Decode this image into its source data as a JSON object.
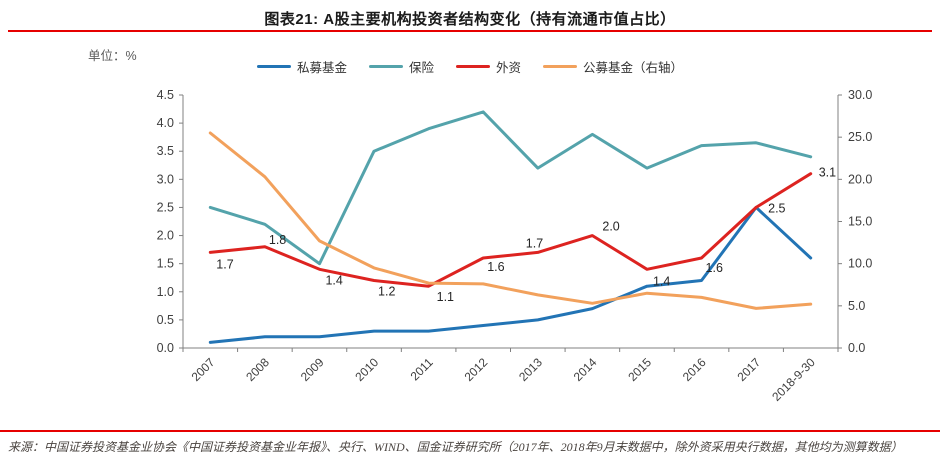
{
  "title": "图表21: A股主要机构投资者结构变化（持有流通市值占比）",
  "unit_label": "单位：%",
  "source_text": "来源：中国证券投资基金业协会《中国证券投资基金业年报》、央行、WIND、国金证券研究所（2017年、2018年9月末数据中，除外资采用央行数据，其他均为测算数据）",
  "colors": {
    "rule_red": "#e60000",
    "axis_gray": "#808080",
    "tick_text": "#3f3f3f",
    "data_label": "#262626",
    "private_fund_blue": "#2274b5",
    "insurance_teal": "#54a3ab",
    "foreign_red": "#dd2320",
    "public_fund_orange": "#f2a15c"
  },
  "chart_data": {
    "type": "line",
    "title": "A股主要机构投资者结构变化（持有流通市值占比）",
    "unit": "%",
    "grid": false,
    "legend_position": "top",
    "categories": [
      "2007",
      "2008",
      "2009",
      "2010",
      "2011",
      "2012",
      "2013",
      "2014",
      "2015",
      "2016",
      "2017",
      "2018-9-30"
    ],
    "left_axis": {
      "min": 0.0,
      "max": 4.5,
      "step": 0.5
    },
    "right_axis": {
      "min": 0.0,
      "max": 30.0,
      "step": 5.0
    },
    "series": [
      {
        "name": "私募基金",
        "axis": "left",
        "color": "#2274b5",
        "values": [
          0.1,
          0.2,
          0.2,
          0.3,
          0.3,
          0.4,
          0.5,
          0.7,
          1.1,
          1.2,
          2.5,
          1.6
        ]
      },
      {
        "name": "保险",
        "axis": "left",
        "color": "#54a3ab",
        "values": [
          2.5,
          2.2,
          1.5,
          3.5,
          3.9,
          4.2,
          3.2,
          3.8,
          3.2,
          3.6,
          3.65,
          3.4
        ]
      },
      {
        "name": "外资",
        "axis": "left",
        "color": "#dd2320",
        "data_labels": true,
        "values": [
          1.7,
          1.8,
          1.4,
          1.2,
          1.1,
          1.6,
          1.7,
          2.0,
          1.4,
          1.6,
          2.5,
          3.1
        ]
      },
      {
        "name": "公募基金（右轴）",
        "axis": "right",
        "color": "#f2a15c",
        "values": [
          25.5,
          20.3,
          12.7,
          9.5,
          7.7,
          7.6,
          6.3,
          5.3,
          6.5,
          6.0,
          4.7,
          5.2
        ]
      }
    ]
  }
}
